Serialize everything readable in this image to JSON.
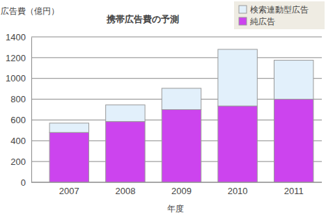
{
  "chart_data": {
    "type": "bar",
    "title": "携帯広告費の予測",
    "y_label": "広告費（億円）",
    "x_label": "年度",
    "categories": [
      "2007",
      "2008",
      "2009",
      "2010",
      "2011"
    ],
    "series": [
      {
        "name": "純広告",
        "color": "#cc44ee",
        "values": [
          480,
          585,
          700,
          735,
          800
        ]
      },
      {
        "name": "検索連動型広告",
        "color": "#e2f0fb",
        "values": [
          90,
          160,
          205,
          545,
          375
        ]
      }
    ],
    "stacked": true,
    "ylim": [
      0,
      1400
    ],
    "yticks": [
      0,
      200,
      400,
      600,
      800,
      1000,
      1200,
      1400
    ],
    "grid": true,
    "legend": "upper right"
  }
}
